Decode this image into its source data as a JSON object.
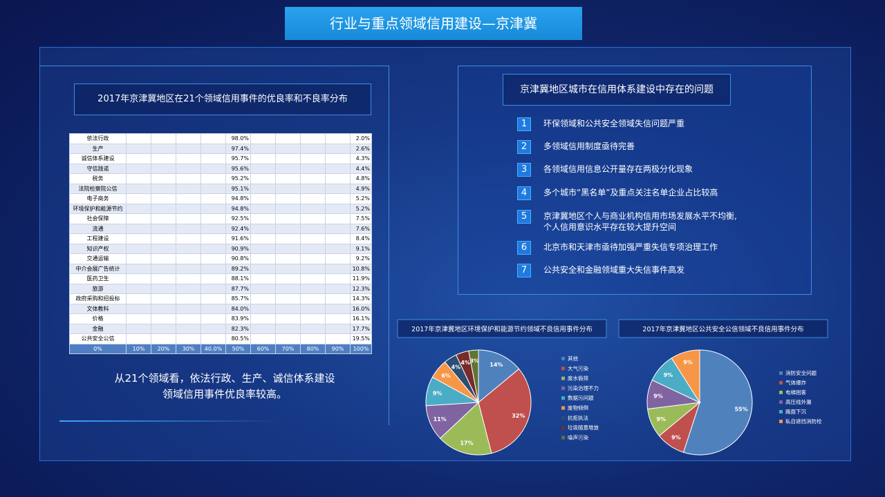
{
  "header": {
    "title": "行业与重点领域信用建设—京津冀"
  },
  "left": {
    "title": "2017年京津冀地区在21个领域信用事件的优良率和不良率分布",
    "table": {
      "rows": [
        [
          "依法行政",
          "98.0%",
          "2.0%"
        ],
        [
          "生产",
          "97.4%",
          "2.6%"
        ],
        [
          "诚信体系建设",
          "95.7%",
          "4.3%"
        ],
        [
          "守信践诺",
          "95.6%",
          "4.4%"
        ],
        [
          "税务",
          "95.2%",
          "4.8%"
        ],
        [
          "法院检察院公信",
          "95.1%",
          "4.9%"
        ],
        [
          "电子商务",
          "94.8%",
          "5.2%"
        ],
        [
          "环境保护和能源节约",
          "94.8%",
          "5.2%"
        ],
        [
          "社会保障",
          "92.5%",
          "7.5%"
        ],
        [
          "流通",
          "92.4%",
          "7.6%"
        ],
        [
          "工程建设",
          "91.6%",
          "8.4%"
        ],
        [
          "知识产权",
          "90.9%",
          "9.1%"
        ],
        [
          "交通运输",
          "90.8%",
          "9.2%"
        ],
        [
          "中介会展广告统计",
          "89.2%",
          "10.8%"
        ],
        [
          "医药卫生",
          "88.1%",
          "11.9%"
        ],
        [
          "旅游",
          "87.7%",
          "12.3%"
        ],
        [
          "政府采购和招投标",
          "85.7%",
          "14.3%"
        ],
        [
          "文体教科",
          "84.0%",
          "16.0%"
        ],
        [
          "价格",
          "83.9%",
          "16.1%"
        ],
        [
          "金融",
          "82.3%",
          "17.7%"
        ],
        [
          "公共安全公信",
          "80.5%",
          "19.5%"
        ]
      ],
      "footer": [
        "0%",
        "10%",
        "20%",
        "30%",
        "40.0%",
        "50%",
        "60%",
        "70%",
        "80%",
        "90%",
        "100%"
      ]
    },
    "note": [
      "从21个领域看，依法行政、生产、诚信体系建设",
      "领域信用事件优良率较高。"
    ]
  },
  "problems": {
    "title": "京津冀地区城市在信用体系建设中存在的问题",
    "items": [
      {
        "num": "1",
        "text": [
          "环保领域和公共安全领域失信问题严重"
        ]
      },
      {
        "num": "2",
        "text": [
          "多领域信用制度亟待完善"
        ]
      },
      {
        "num": "3",
        "text": [
          "各领域信用信息公开量存在两极分化现象"
        ]
      },
      {
        "num": "4",
        "text": [
          "多个城市“黑名单”及重点关注名单企业占比较高"
        ]
      },
      {
        "num": "5",
        "text": [
          "京津冀地区个人与商业机构信用市场发展水平不均衡,",
          "个人信用意识水平存在较大提升空间"
        ]
      },
      {
        "num": "6",
        "text": [
          "北京市和天津市亟待加强严重失信专项治理工作"
        ]
      },
      {
        "num": "7",
        "text": [
          "公共安全和金融领域重大失信事件高发"
        ]
      }
    ]
  },
  "chart_data": [
    {
      "type": "pie",
      "title": "2017年京津冀地区环境保护和能源节约领域不良信用事件分布",
      "categories": [
        "其他",
        "大气污染",
        "废水偷排",
        "污染治理不力",
        "数据污问题",
        "废物倾倒",
        "抗拒执法",
        "垃圾随意堆放",
        "噪声污染"
      ],
      "values": [
        14,
        32,
        17,
        11,
        9,
        6,
        4,
        4,
        3
      ],
      "value_labels": [
        "14%",
        "32%",
        "17%",
        "11%",
        "9%",
        "6%",
        "4%",
        "4%",
        "3%"
      ],
      "colors": [
        "#4f81bd",
        "#c0504d",
        "#9bbb59",
        "#8064a2",
        "#4bacc6",
        "#f79646",
        "#2c4d75",
        "#772c2a",
        "#5f7530"
      ]
    },
    {
      "type": "pie",
      "title": "2017年京津冀地区公共安全公信领域不良信用事件分布",
      "categories": [
        "消防安全问题",
        "气体爆炸",
        "电梯困客",
        "高压线外漏",
        "路面下沉",
        "私自遮挡消防栓"
      ],
      "values": [
        55,
        9,
        9,
        9,
        9,
        9
      ],
      "value_labels": [
        "55%",
        "9%",
        "9%",
        "9%",
        "9%",
        "9%"
      ],
      "colors": [
        "#4f81bd",
        "#c0504d",
        "#9bbb59",
        "#8064a2",
        "#4bacc6",
        "#f79646"
      ]
    }
  ]
}
